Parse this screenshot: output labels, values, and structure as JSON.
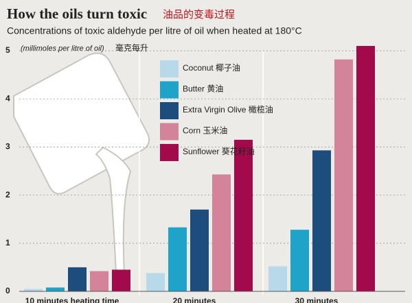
{
  "chart_data": {
    "type": "bar",
    "title": "How the oils turn toxic",
    "title_cn": "油品的变毒过程",
    "subtitle": "Concentrations of toxic aldehyde per litre of oil when heated at 180°C",
    "y_unit": "(millimoles per litre of oil)",
    "y_unit_cn": "毫克每升",
    "categories": [
      "10 minutes heating time",
      "20 minutes",
      "30 minutes"
    ],
    "series": [
      {
        "name": "Coconut 椰子油",
        "color": "#b8d9ea",
        "values": [
          0.05,
          0.38,
          0.52
        ]
      },
      {
        "name": "Butter 黄油",
        "color": "#1fa3c8",
        "values": [
          0.08,
          1.33,
          1.28
        ]
      },
      {
        "name": "Extra Virgin Olive 橄榄油",
        "color": "#1c4d7c",
        "values": [
          0.5,
          1.7,
          2.93
        ]
      },
      {
        "name": "Corn 玉米油",
        "color": "#d3849a",
        "values": [
          0.42,
          2.43,
          4.82
        ]
      },
      {
        "name": "Sunflower 葵花籽油",
        "color": "#a20a4c",
        "values": [
          0.45,
          3.15,
          5.1
        ]
      }
    ],
    "ylim": [
      0,
      5.2
    ],
    "yticks": [
      0,
      1,
      2,
      3,
      4,
      5
    ],
    "grid": true
  }
}
